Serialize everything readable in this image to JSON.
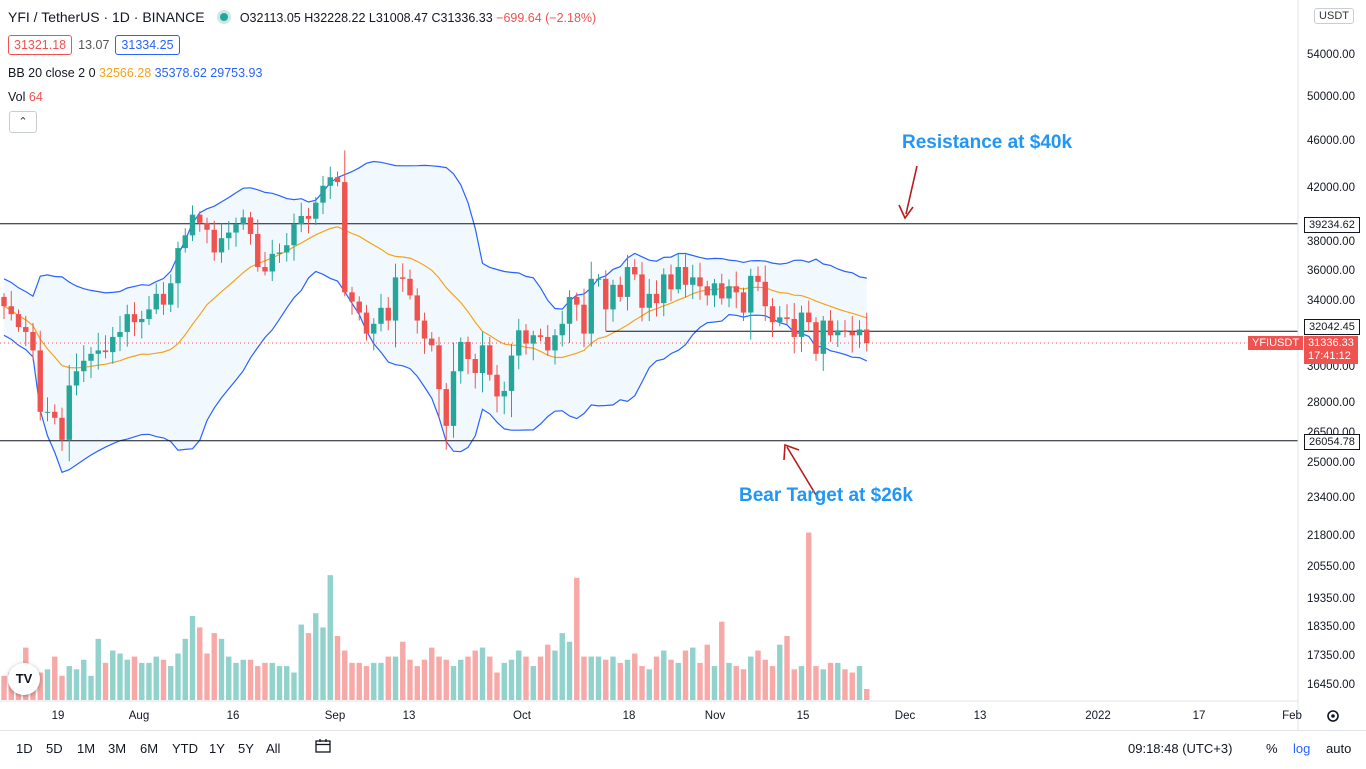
{
  "header": {
    "symbol": "YFI / TetherUS · 1D · BINANCE",
    "open": "O32113.05",
    "high": "H32228.22",
    "low": "L31008.47",
    "close": "C31336.33",
    "change": "−699.64 (−2.18%)",
    "bid": "31321.18",
    "spread": "13.07",
    "ask": "31334.25",
    "bb_label": "BB 20 close 2 0",
    "bb_basis": "32566.28",
    "bb_upper": "35378.62",
    "bb_lower": "29753.93",
    "vol_label": "Vol",
    "vol_value": "64",
    "currency": "USDT"
  },
  "bottom": {
    "timeframes": [
      "1D",
      "5D",
      "1M",
      "3M",
      "6M",
      "YTD",
      "1Y",
      "5Y",
      "All"
    ],
    "clock": "09:18:48 (UTC+3)",
    "pct": "%",
    "log": "log",
    "auto": "auto"
  },
  "colors": {
    "up": "#26a69a",
    "down": "#ef5350",
    "bb": "#2962ff",
    "basis": "#f7a21b",
    "anno": "#2196f3",
    "arrow": "#b71c1c"
  },
  "annotations": {
    "resistance": "Resistance at $40k",
    "bear_target": "Bear Target at $26k"
  },
  "price_tags": {
    "resistance": "39234.62",
    "mid": "32042.45",
    "support": "26054.78",
    "symbol_tag": "YFIUSDT",
    "last": "31336.33",
    "countdown": "17:41:12"
  },
  "chart_data": {
    "type": "candlestick",
    "symbol": "YFIUSDT",
    "ylim": [
      16000,
      58000
    ],
    "y_ticks": [
      54000,
      50000,
      46000,
      42000,
      38000,
      36000,
      34000,
      30000,
      28000,
      26500,
      25000,
      23400,
      21800,
      20550,
      19350,
      18350,
      17350,
      16450
    ],
    "x_ticks": [
      "19",
      "Aug",
      "16",
      "Sep",
      "13",
      "Oct",
      "18",
      "Nov",
      "15",
      "Dec",
      "13",
      "2022",
      "17",
      "Feb"
    ],
    "levels": {
      "resistance": 39234.62,
      "mid": 32042.45,
      "support": 26054.78,
      "last": 31336.33
    },
    "closes": [
      33600,
      33100,
      32300,
      32000,
      30900,
      27500,
      27500,
      27200,
      26100,
      28900,
      29700,
      30300,
      30700,
      30900,
      30800,
      31700,
      32000,
      33100,
      32600,
      32800,
      33400,
      34400,
      33700,
      35100,
      37500,
      38400,
      39900,
      39300,
      38800,
      37200,
      38200,
      38600,
      39200,
      39700,
      38500,
      36200,
      35900,
      37100,
      37200,
      37700,
      39200,
      39800,
      39600,
      40800,
      42100,
      42800,
      42400,
      34500,
      33900,
      33200,
      31900,
      32500,
      33500,
      32700,
      35500,
      35400,
      34300,
      32700,
      31600,
      31200,
      28700,
      26800,
      29700,
      31400,
      30400,
      29600,
      31200,
      29500,
      28300,
      28600,
      30600,
      32100,
      31300,
      31800,
      31700,
      30900,
      31800,
      32500,
      34200,
      33700,
      31900,
      35400,
      35400,
      33400,
      35000,
      34200,
      36200,
      35700,
      33500,
      34400,
      33800,
      35700,
      34700,
      36200,
      35000,
      35500,
      34900,
      34300,
      35100,
      34100,
      34900,
      34500,
      33200,
      35600,
      35200,
      33600,
      32600,
      32900,
      32800,
      31700,
      33200,
      32600,
      30700,
      32700,
      31800,
      32100,
      32000,
      31800,
      32150,
      31336
    ],
    "volume": {
      "ylim": [
        16000,
        23000
      ],
      "values": [
        16700,
        16800,
        17000,
        17600,
        16800,
        16800,
        16900,
        17300,
        16700,
        17000,
        16900,
        17200,
        16700,
        17900,
        17100,
        17500,
        17400,
        17200,
        17300,
        17100,
        17100,
        17300,
        17200,
        17000,
        17400,
        17900,
        18700,
        18300,
        17400,
        18100,
        17900,
        17300,
        17100,
        17200,
        17200,
        17000,
        17100,
        17100,
        17000,
        17000,
        16800,
        18400,
        18100,
        18800,
        18300,
        20200,
        18000,
        17500,
        17100,
        17100,
        17000,
        17100,
        17100,
        17300,
        17300,
        17800,
        17200,
        17000,
        17200,
        17600,
        17300,
        17200,
        17000,
        17200,
        17300,
        17500,
        17600,
        17300,
        16800,
        17100,
        17200,
        17500,
        17300,
        17000,
        17300,
        17700,
        17500,
        18100,
        17800,
        20100,
        17300,
        17300,
        17300,
        17200,
        17300,
        17100,
        17200,
        17400,
        17000,
        16900,
        17300,
        17500,
        17200,
        17100,
        17500,
        17600,
        17100,
        17700,
        17000,
        18500,
        17100,
        17000,
        16900,
        17300,
        17500,
        17200,
        17000,
        17700,
        18000,
        16900,
        17000,
        21900,
        17000,
        16900,
        17100,
        17100,
        16900,
        16800,
        17000,
        16300
      ],
      "note": ""
    }
  }
}
